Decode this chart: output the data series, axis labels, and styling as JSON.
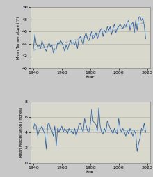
{
  "years": [
    1940,
    1941,
    1942,
    1943,
    1944,
    1945,
    1946,
    1947,
    1948,
    1949,
    1950,
    1951,
    1952,
    1953,
    1954,
    1955,
    1956,
    1957,
    1958,
    1959,
    1960,
    1961,
    1962,
    1963,
    1964,
    1965,
    1966,
    1967,
    1968,
    1969,
    1970,
    1971,
    1972,
    1973,
    1974,
    1975,
    1976,
    1977,
    1978,
    1979,
    1980,
    1981,
    1982,
    1983,
    1984,
    1985,
    1986,
    1987,
    1988,
    1989,
    1990,
    1991,
    1992,
    1993,
    1994,
    1995,
    1996,
    1997,
    1998,
    1999,
    2000,
    2001,
    2002,
    2003,
    2004,
    2005,
    2006,
    2007,
    2008,
    2009,
    2010,
    2011,
    2012,
    2013,
    2014,
    2015,
    2016,
    2017,
    2018,
    2019
  ],
  "temp": [
    43.2,
    45.5,
    44.0,
    43.5,
    43.8,
    43.2,
    44.5,
    43.8,
    43.2,
    42.8,
    43.5,
    44.2,
    43.5,
    43.8,
    42.5,
    43.2,
    43.0,
    44.2,
    44.0,
    44.5,
    44.2,
    43.5,
    42.8,
    43.8,
    43.0,
    43.8,
    44.5,
    44.0,
    44.2,
    43.8,
    44.5,
    43.2,
    44.8,
    45.2,
    44.5,
    43.8,
    45.2,
    45.8,
    44.8,
    44.5,
    45.2,
    46.0,
    44.8,
    45.2,
    45.8,
    44.8,
    45.5,
    46.2,
    46.5,
    45.2,
    46.2,
    45.8,
    46.8,
    46.2,
    46.8,
    45.5,
    46.5,
    47.2,
    45.8,
    46.5,
    46.8,
    47.2,
    46.8,
    46.5,
    47.2,
    46.8,
    47.5,
    47.8,
    46.2,
    47.2,
    47.5,
    45.8,
    47.8,
    46.2,
    48.2,
    48.5,
    47.8,
    48.2,
    47.0,
    44.8
  ],
  "precip": [
    4.5,
    5.2,
    4.8,
    3.5,
    4.2,
    4.5,
    4.8,
    4.2,
    3.8,
    1.8,
    5.0,
    5.2,
    4.5,
    4.2,
    3.5,
    4.8,
    2.2,
    4.5,
    4.0,
    4.5,
    4.8,
    4.0,
    4.5,
    4.2,
    3.8,
    4.5,
    4.0,
    4.2,
    3.8,
    4.5,
    3.5,
    4.2,
    5.0,
    5.2,
    4.5,
    4.0,
    5.8,
    5.0,
    4.2,
    4.0,
    5.0,
    7.0,
    5.5,
    5.2,
    5.0,
    4.2,
    7.2,
    4.8,
    4.0,
    3.8,
    4.5,
    4.0,
    5.5,
    5.0,
    4.5,
    4.2,
    3.8,
    4.5,
    4.0,
    3.8,
    5.8,
    4.5,
    4.0,
    4.5,
    4.0,
    3.5,
    4.2,
    3.8,
    4.5,
    4.0,
    3.5,
    4.2,
    3.8,
    1.5,
    2.5,
    3.2,
    4.5,
    4.2,
    5.2,
    4.0
  ],
  "line_color": "#3060a0",
  "trend_color": "#8ab0d8",
  "bg_color": "#c8c8c8",
  "plot_bg_color": "#d8d8cc",
  "grid_color": "#aaaaaa",
  "temp_ylabel": "Mean Temperature (°F)",
  "precip_ylabel": "Mean Precipitation (Inches)",
  "xlabel": "Year",
  "temp_ylim": [
    40,
    50
  ],
  "temp_yticks": [
    40,
    42,
    44,
    46,
    48,
    50
  ],
  "precip_ylim": [
    0,
    8
  ],
  "precip_yticks": [
    0,
    2,
    4,
    6,
    8
  ],
  "xlim": [
    1938,
    2022
  ],
  "xticks": [
    1940,
    1960,
    1980,
    2000,
    2020
  ]
}
